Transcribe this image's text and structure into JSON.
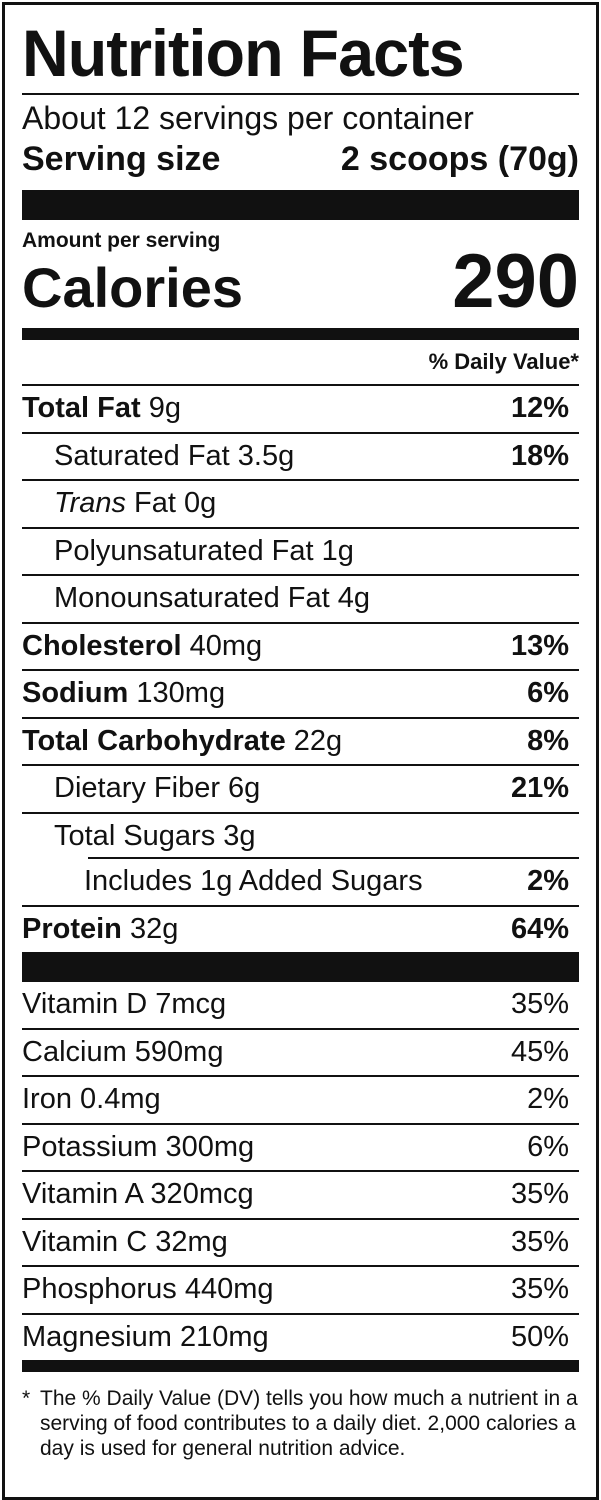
{
  "title": "Nutrition Facts",
  "servings": "About 12 servings per container",
  "serving_size": {
    "label": "Serving size",
    "value": "2 scoops (70g)"
  },
  "amount_per_serving": "Amount per serving",
  "calories": {
    "label": "Calories",
    "value": "290"
  },
  "dv_header": "% Daily Value*",
  "nutrients": [
    {
      "name": "Total Fat",
      "amount": "9g",
      "dv": "12%"
    },
    {
      "text": "Saturated Fat 3.5g",
      "dv": "18%"
    },
    {
      "name": "Trans",
      "amount": "Fat 0g"
    },
    {
      "text": "Polyunsaturated Fat 1g"
    },
    {
      "text": "Monounsaturated Fat 4g"
    },
    {
      "name": "Cholesterol",
      "amount": "40mg",
      "dv": "13%"
    },
    {
      "name": "Sodium",
      "amount": "130mg",
      "dv": "6%"
    },
    {
      "name": "Total Carbohydrate",
      "amount": "22g",
      "dv": "8%"
    },
    {
      "text": "Dietary Fiber 6g",
      "dv": "21%"
    },
    {
      "text": "Total Sugars 3g"
    },
    {
      "text": "Includes 1g Added Sugars",
      "dv": "2%"
    },
    {
      "name": "Protein",
      "amount": "32g",
      "dv": "64%"
    }
  ],
  "vitamins": [
    {
      "text": "Vitamin D 7mcg",
      "dv": "35%"
    },
    {
      "text": "Calcium 590mg",
      "dv": "45%"
    },
    {
      "text": "Iron 0.4mg",
      "dv": "2%"
    },
    {
      "text": "Potassium 300mg",
      "dv": "6%"
    },
    {
      "text": "Vitamin A 320mcg",
      "dv": "35%"
    },
    {
      "text": "Vitamin C 32mg",
      "dv": "35%"
    },
    {
      "text": "Phosphorus 440mg",
      "dv": "35%"
    },
    {
      "text": "Magnesium 210mg",
      "dv": "50%"
    }
  ],
  "footnote": {
    "mark": "*",
    "text": "The % Daily Value (DV) tells you how much a nutrient in a serving of food contributes to a daily diet. 2,000 calories a day is used for general nutrition advice."
  }
}
